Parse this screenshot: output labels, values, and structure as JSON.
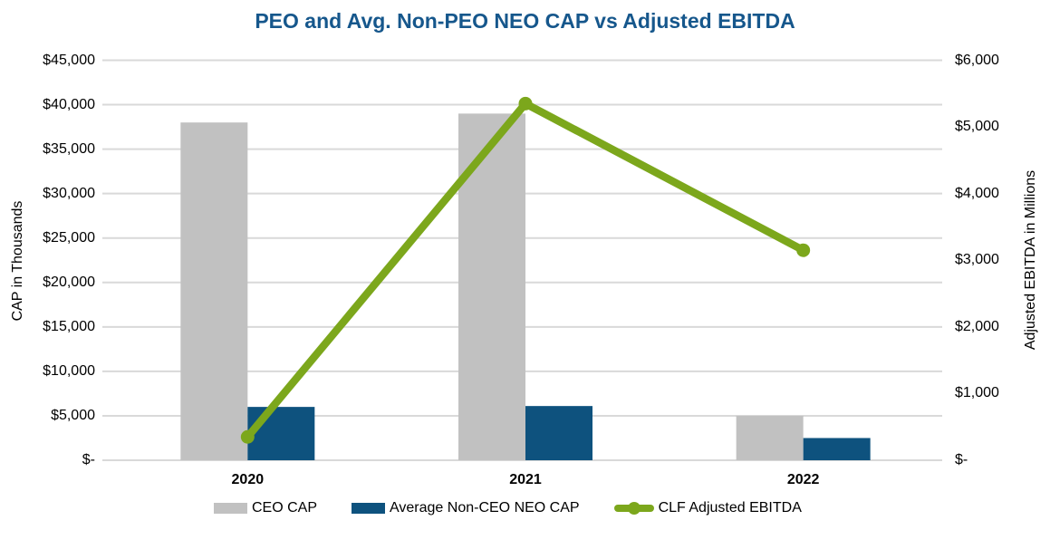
{
  "title": "PEO and Avg. Non-PEO NEO CAP vs Adjusted EBITDA",
  "colors": {
    "title": "#16578C",
    "ceo_bar": "#C1C1C1",
    "neo_bar": "#0E527E",
    "ebitda_line": "#7CA71C",
    "gridline": "#D9D9D9",
    "text": "#000000"
  },
  "left_axis": {
    "title": "CAP in Thousands",
    "tick_labels": [
      "$45,000",
      "$40,000",
      "$35,000",
      "$30,000",
      "$25,000",
      "$20,000",
      "$15,000",
      "$10,000",
      "$5,000",
      "$-"
    ],
    "tick_values": [
      45000,
      40000,
      35000,
      30000,
      25000,
      20000,
      15000,
      10000,
      5000,
      0
    ],
    "min": 0,
    "max": 45000
  },
  "right_axis": {
    "title": "Adjusted EBITDA in Millions",
    "tick_labels": [
      "$6,000",
      "$5,000",
      "$4,000",
      "$3,000",
      "$2,000",
      "$1,000",
      "$-"
    ],
    "tick_values": [
      6000,
      5000,
      4000,
      3000,
      2000,
      1000,
      0
    ],
    "min": 0,
    "max": 6000
  },
  "x_axis": {
    "categories": [
      "2020",
      "2021",
      "2022"
    ]
  },
  "legend": [
    {
      "label": "CEO CAP",
      "type": "bar",
      "color": "#C1C1C1"
    },
    {
      "label": "Average Non-CEO NEO CAP",
      "type": "bar",
      "color": "#0E527E"
    },
    {
      "label": "CLF Adjusted EBITDA",
      "type": "line",
      "color": "#7CA71C"
    }
  ],
  "chart_data": {
    "type": "bar+line",
    "title": "PEO and Avg. Non-PEO NEO CAP vs Adjusted EBITDA",
    "categories": [
      "2020",
      "2021",
      "2022"
    ],
    "series": [
      {
        "name": "CEO CAP",
        "type": "bar",
        "axis": "left",
        "color": "#C1C1C1",
        "values": [
          38000,
          39000,
          5000
        ]
      },
      {
        "name": "Average Non-CEO NEO CAP",
        "type": "bar",
        "axis": "left",
        "color": "#0E527E",
        "values": [
          6000,
          6100,
          2500
        ]
      },
      {
        "name": "CLF Adjusted EBITDA",
        "type": "line",
        "axis": "right",
        "color": "#7CA71C",
        "values": [
          350,
          5350,
          3150
        ]
      }
    ],
    "left_ylabel": "CAP in Thousands",
    "left_ylim": [
      0,
      45000
    ],
    "right_ylabel": "Adjusted EBITDA in Millions",
    "right_ylim": [
      0,
      6000
    ],
    "grid": true,
    "legend_position": "bottom"
  }
}
